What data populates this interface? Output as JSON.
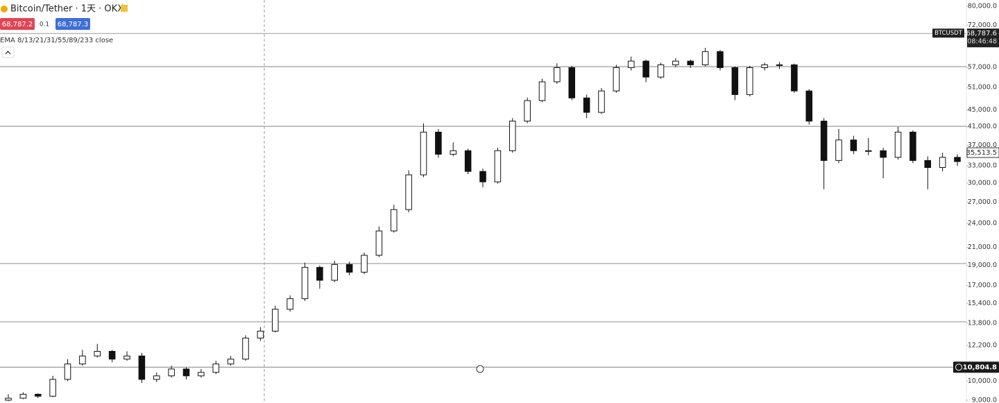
{
  "chart_data": {
    "type": "candlestick",
    "title": "Bitcoin/Tether · 1天 · OKX",
    "bid": "68,787.2",
    "spread": "0.1",
    "ask": "68,787.3",
    "indicator": "EMA 8/13/21/31/55/89/233 close",
    "symbol": "BTCUSDT",
    "countdown": "08:46:48",
    "log_scale": true,
    "colors": {
      "up": "#ffffff",
      "down": "#111111",
      "outline": "#111111",
      "level": "#9a9a9a"
    },
    "ylim": [
      8860,
      82800
    ],
    "yticks": [
      {
        "value": 80000,
        "label": "80,000.0"
      },
      {
        "value": 72000,
        "label": "72,000.0"
      },
      {
        "value": 57000,
        "label": "57,000.0"
      },
      {
        "value": 51000,
        "label": "51,000.0"
      },
      {
        "value": 45000,
        "label": "45,000.0"
      },
      {
        "value": 41000,
        "label": "41,000.0"
      },
      {
        "value": 37000,
        "label": "37,000.0"
      },
      {
        "value": 33000,
        "label": "33,000.0"
      },
      {
        "value": 30000,
        "label": "30,000.0"
      },
      {
        "value": 27000,
        "label": "27,000.0"
      },
      {
        "value": 24000,
        "label": "24,000.0"
      },
      {
        "value": 21000,
        "label": "21,000.0"
      },
      {
        "value": 19000,
        "label": "19,000.0"
      },
      {
        "value": 17000,
        "label": "17,000.0"
      },
      {
        "value": 15400,
        "label": "15,400.0"
      },
      {
        "value": 13800,
        "label": "13,800.0"
      },
      {
        "value": 12200,
        "label": "12,200.0"
      },
      {
        "value": 10000,
        "label": "10,000.0"
      },
      {
        "value": 9000,
        "label": "9,000.0"
      }
    ],
    "current_price": {
      "value": 68787.6,
      "label": "68,787.6"
    },
    "last_price": {
      "value": 35513.5,
      "label": "35,513.5"
    },
    "marked_price": {
      "value": 10804.8,
      "label": "10,804.8"
    },
    "levels": [
      57200,
      41100,
      19200,
      13900
    ],
    "open": [
      9000,
      9100,
      9300,
      9200,
      10100,
      11000,
      11500,
      11800,
      11300,
      11500,
      10100,
      10300,
      10700,
      10300,
      10500,
      11000,
      11300,
      12700,
      13200,
      14900,
      15800,
      18800,
      17500,
      19100,
      18300,
      20100,
      23000,
      25900,
      31400,
      39800,
      35200,
      35900,
      32000,
      30200,
      35900,
      42300,
      47400,
      52600,
      56900,
      48100,
      44400,
      50000,
      56900,
      59000,
      54000,
      57800,
      59000,
      57800,
      62200,
      56900,
      49000,
      56900,
      57800,
      57800,
      50000,
      42300,
      34000,
      38100,
      35900,
      35900,
      34600,
      39800,
      34000,
      32700,
      34600
    ],
    "high": [
      9300,
      9400,
      9350,
      10300,
      11300,
      11900,
      12300,
      11900,
      11800,
      11700,
      10500,
      10900,
      10800,
      10700,
      11200,
      11500,
      12900,
      13500,
      15200,
      16100,
      19300,
      19000,
      19500,
      19400,
      20400,
      23600,
      26600,
      32200,
      41800,
      40500,
      37600,
      36300,
      32500,
      36500,
      43000,
      48200,
      53500,
      58300,
      57500,
      49000,
      50800,
      57800,
      60500,
      59500,
      58500,
      60000,
      59500,
      63500,
      62800,
      57300,
      57500,
      58500,
      58700,
      58200,
      50500,
      43000,
      40500,
      39000,
      38500,
      36500,
      41000,
      40200,
      34800,
      35500,
      35200
    ],
    "low": [
      8950,
      9050,
      9100,
      9150,
      10000,
      10900,
      11400,
      11100,
      11200,
      9900,
      9950,
      10200,
      10100,
      10200,
      10400,
      10900,
      11200,
      12500,
      13100,
      14700,
      15600,
      16700,
      17300,
      18000,
      18100,
      19900,
      22800,
      25500,
      31000,
      34500,
      34800,
      31500,
      29300,
      29900,
      35500,
      41800,
      47000,
      52000,
      47500,
      43000,
      44000,
      49500,
      56000,
      52500,
      53500,
      57000,
      56800,
      57300,
      56000,
      47500,
      48500,
      56000,
      56500,
      49500,
      41500,
      29000,
      33500,
      35200,
      35000,
      30800,
      34200,
      33500,
      29000,
      32000,
      33000
    ],
    "close": [
      9100,
      9300,
      9200,
      10100,
      11000,
      11500,
      11800,
      11300,
      11500,
      10100,
      10300,
      10700,
      10300,
      10500,
      11000,
      11300,
      12700,
      13200,
      14900,
      15800,
      18800,
      17500,
      19100,
      18300,
      20100,
      23000,
      25900,
      31400,
      39800,
      35200,
      35900,
      32000,
      30200,
      35900,
      42300,
      47400,
      52600,
      56900,
      48100,
      44400,
      50000,
      56900,
      59000,
      54000,
      57800,
      59000,
      57800,
      62200,
      56900,
      49000,
      56900,
      57800,
      57800,
      50000,
      42300,
      34000,
      38100,
      35900,
      35900,
      34600,
      39800,
      34000,
      32700,
      34600,
      33800
    ]
  }
}
